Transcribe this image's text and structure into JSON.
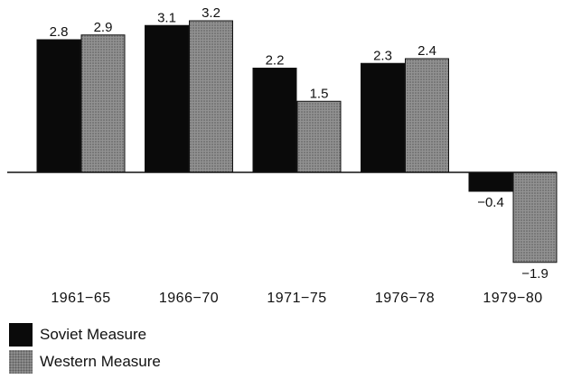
{
  "chart_data": {
    "type": "bar",
    "title": "",
    "xlabel": "",
    "ylabel": "",
    "categories": [
      "1961-65",
      "1966-70",
      "1971-75",
      "1976-78",
      "1979-80"
    ],
    "series": [
      {
        "name": "Soviet Measure",
        "values": [
          2.8,
          3.1,
          2.2,
          2.3,
          -0.4
        ],
        "labels": [
          "2.8",
          "3.1",
          "2.2",
          "2.3",
          "−0.4"
        ],
        "color": "#0a0a0a"
      },
      {
        "name": "Western Measure",
        "values": [
          2.9,
          3.2,
          1.5,
          2.4,
          -1.9
        ],
        "labels": [
          "2.9",
          "3.2",
          "1.5",
          "2.4",
          "−1.9"
        ],
        "color": "#8f8f8f"
      }
    ],
    "ylim": [
      -2.3,
      3.4
    ],
    "grid": false,
    "legend_position": "bottom-left"
  },
  "legend": {
    "items": [
      {
        "label": "Soviet Measure"
      },
      {
        "label": "Western Measure"
      }
    ]
  }
}
